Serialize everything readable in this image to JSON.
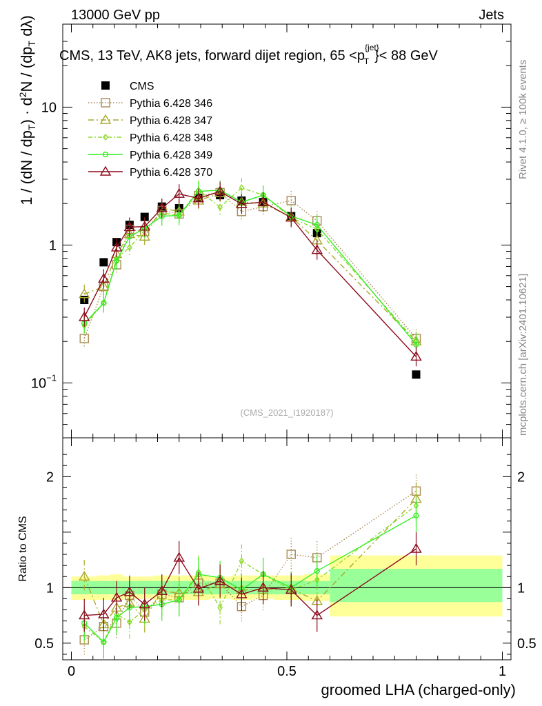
{
  "header": {
    "left": "13000 GeV pp",
    "right": "Jets"
  },
  "side_labels": {
    "top": "Rivet 4.1.0, ≥ 100k events",
    "bottom": "mcplots.cern.ch [arXiv:2401.10621]"
  },
  "watermark": "(CMS_2021_I1920187)",
  "colors": {
    "cms": "#000000",
    "p346": "#a88a50",
    "p347": "#a8a82a",
    "p348": "#8fd82a",
    "p349": "#33ee22",
    "p370": "#8b0a1c",
    "band_stat": "#99ff99",
    "band_tot": "#ffff99"
  },
  "chart_data": [
    {
      "type": "scatter",
      "title_parts": {
        "main": "CMS, 13 TeV, AK8 jets, forward dijet region, 65 <p",
        "sup": "{jet}",
        "sub": "T",
        "tail": "}< 88 GeV"
      },
      "ylabel": "1/(dN/dpT) d²N/(dpT dλ)",
      "yscale": "log",
      "ylim": [
        0.04,
        40
      ],
      "xlim": [
        -0.02,
        1.02
      ],
      "yticks": [
        {
          "v": 0.1,
          "base": "10",
          "exp": "−1"
        },
        {
          "v": 1,
          "base": "1",
          "exp": ""
        },
        {
          "v": 10,
          "base": "10",
          "exp": ""
        }
      ],
      "x": [
        0.03,
        0.075,
        0.105,
        0.135,
        0.17,
        0.21,
        0.25,
        0.295,
        0.345,
        0.395,
        0.445,
        0.51,
        0.57,
        0.8
      ],
      "series": [
        {
          "name": "CMS",
          "key": "cms",
          "marker": "square-filled",
          "dash": "",
          "values": [
            0.4,
            0.75,
            1.05,
            1.4,
            1.6,
            1.9,
            1.85,
            2.2,
            2.3,
            2.1,
            2.05,
            1.62,
            1.22,
            0.115
          ]
        },
        {
          "name": "Pythia 6.428 346",
          "key": "p346",
          "marker": "square-open",
          "dash": "1.5,2.5",
          "values": [
            0.21,
            0.5,
            0.72,
            1.3,
            1.25,
            1.78,
            1.68,
            2.28,
            2.4,
            1.75,
            1.9,
            2.1,
            1.5,
            0.21
          ]
        },
        {
          "name": "Pythia 6.428 347",
          "key": "p347",
          "marker": "triangle-open",
          "dash": "8,4,2,4",
          "values": [
            0.44,
            0.5,
            0.86,
            1.2,
            1.15,
            1.85,
            1.75,
            2.1,
            2.38,
            2.05,
            2.0,
            1.6,
            1.08,
            0.2
          ]
        },
        {
          "name": "Pythia 6.428 348",
          "key": "p348",
          "marker": "diamond-open",
          "dash": "6,3,2,3",
          "values": [
            0.26,
            0.38,
            0.8,
            0.96,
            1.28,
            1.7,
            1.65,
            2.5,
            1.88,
            2.6,
            2.3,
            1.58,
            1.3,
            0.2
          ]
        },
        {
          "name": "Pythia 6.428 349",
          "key": "p349",
          "marker": "circle-open",
          "dash": "",
          "values": [
            0.27,
            0.38,
            0.77,
            1.15,
            1.32,
            1.62,
            1.64,
            2.45,
            2.5,
            2.05,
            2.3,
            1.62,
            1.4,
            0.19
          ]
        },
        {
          "name": "Pythia 6.428 370",
          "key": "p370",
          "marker": "triangle-open",
          "dash": "",
          "values": [
            0.3,
            0.57,
            0.96,
            1.35,
            1.36,
            1.85,
            2.35,
            2.18,
            2.45,
            1.98,
            2.05,
            1.58,
            0.92,
            0.155
          ]
        }
      ]
    },
    {
      "type": "scatter",
      "ylabel": "Ratio to CMS",
      "xlabel": "groomed LHA (charged-only)",
      "ylim": [
        0.35,
        2.35
      ],
      "xlim": [
        -0.02,
        1.02
      ],
      "yticks": [
        0.5,
        1,
        2
      ],
      "xticks": [
        {
          "v": 0,
          "label": "0"
        },
        {
          "v": 0.5,
          "label": "0.5"
        },
        {
          "v": 1,
          "label": "1"
        }
      ],
      "band_bins": [
        {
          "x": [
            0.0,
            0.06
          ],
          "stat": [
            0.94,
            1.06
          ],
          "tot": [
            0.89,
            1.1
          ]
        },
        {
          "x": [
            0.06,
            0.09
          ],
          "stat": [
            0.94,
            1.06
          ],
          "tot": [
            0.89,
            1.11
          ]
        },
        {
          "x": [
            0.09,
            0.12
          ],
          "stat": [
            0.94,
            1.06
          ],
          "tot": [
            0.89,
            1.12
          ]
        },
        {
          "x": [
            0.12,
            0.15
          ],
          "stat": [
            0.94,
            1.06
          ],
          "tot": [
            0.9,
            1.1
          ]
        },
        {
          "x": [
            0.15,
            0.19
          ],
          "stat": [
            0.94,
            1.06
          ],
          "tot": [
            0.9,
            1.1
          ]
        },
        {
          "x": [
            0.19,
            0.23
          ],
          "stat": [
            0.94,
            1.06
          ],
          "tot": [
            0.89,
            1.11
          ]
        },
        {
          "x": [
            0.23,
            0.27
          ],
          "stat": [
            0.94,
            1.06
          ],
          "tot": [
            0.89,
            1.11
          ]
        },
        {
          "x": [
            0.27,
            0.32
          ],
          "stat": [
            0.94,
            1.06
          ],
          "tot": [
            0.89,
            1.11
          ]
        },
        {
          "x": [
            0.32,
            0.37
          ],
          "stat": [
            0.94,
            1.06
          ],
          "tot": [
            0.9,
            1.1
          ]
        },
        {
          "x": [
            0.37,
            0.42
          ],
          "stat": [
            0.94,
            1.06
          ],
          "tot": [
            0.89,
            1.11
          ]
        },
        {
          "x": [
            0.42,
            0.47
          ],
          "stat": [
            0.94,
            1.06
          ],
          "tot": [
            0.9,
            1.11
          ]
        },
        {
          "x": [
            0.47,
            0.54
          ],
          "stat": [
            0.94,
            1.06
          ],
          "tot": [
            0.89,
            1.11
          ]
        },
        {
          "x": [
            0.54,
            0.6
          ],
          "stat": [
            0.94,
            1.06
          ],
          "tot": [
            0.88,
            1.12
          ]
        },
        {
          "x": [
            0.6,
            1.0
          ],
          "stat": [
            0.87,
            1.17
          ],
          "tot": [
            0.74,
            1.29
          ]
        }
      ],
      "series": [
        {
          "key": "p346",
          "marker": "square-open",
          "dash": "1.5,2.5",
          "values": [
            0.53,
            0.65,
            0.68,
            0.93,
            0.78,
            0.94,
            0.91,
            1.04,
            1.04,
            0.83,
            0.93,
            1.3,
            1.27,
            1.87
          ]
        },
        {
          "key": "p347",
          "marker": "triangle-open",
          "dash": "8,4,2,4",
          "values": [
            1.1,
            0.67,
            0.82,
            0.86,
            0.72,
            0.97,
            0.95,
            0.96,
            1.03,
            0.98,
            0.98,
            0.99,
            0.88,
            1.8
          ]
        },
        {
          "key": "p348",
          "marker": "diamond-open",
          "dash": "6,3,2,3",
          "values": [
            0.65,
            0.51,
            0.76,
            0.69,
            0.8,
            0.89,
            0.89,
            1.14,
            0.82,
            1.24,
            1.12,
            0.98,
            1.07,
            1.74
          ]
        },
        {
          "key": "p349",
          "marker": "circle-open",
          "dash": "",
          "values": [
            0.68,
            0.51,
            0.73,
            0.82,
            0.83,
            0.85,
            0.89,
            1.12,
            1.09,
            0.98,
            1.12,
            1.0,
            1.15,
            1.65
          ]
        },
        {
          "key": "p370",
          "marker": "triangle-open",
          "dash": "",
          "values": [
            0.75,
            0.76,
            0.91,
            0.96,
            0.85,
            0.97,
            1.27,
            0.99,
            1.06,
            0.94,
            1.0,
            0.98,
            0.75,
            1.35
          ]
        }
      ]
    }
  ]
}
